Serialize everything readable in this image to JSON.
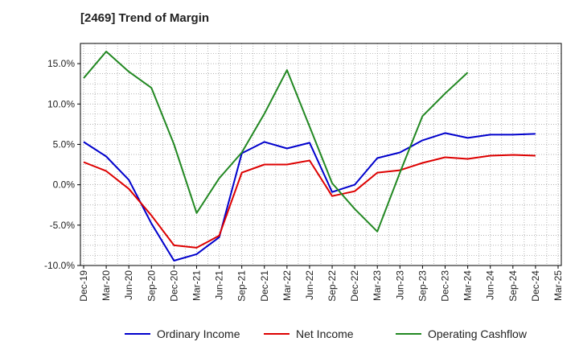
{
  "chart_data": {
    "type": "line",
    "title": "[2469]  Trend of Margin",
    "xlabel": "",
    "ylabel": "",
    "categories": [
      "Dec-19",
      "Mar-20",
      "Jun-20",
      "Sep-20",
      "Dec-20",
      "Mar-21",
      "Jun-21",
      "Sep-21",
      "Dec-21",
      "Mar-22",
      "Jun-22",
      "Sep-22",
      "Dec-22",
      "Mar-23",
      "Jun-23",
      "Sep-23",
      "Dec-23",
      "Mar-24",
      "Jun-24",
      "Sep-24",
      "Dec-24",
      "Mar-25"
    ],
    "ylim": [
      -10,
      17.5
    ],
    "yticks": [
      -10,
      -5,
      0,
      5,
      10,
      15
    ],
    "ytick_labels": [
      "-10.0%",
      "-5.0%",
      "0.0%",
      "5.0%",
      "10.0%",
      "15.0%"
    ],
    "grid": true,
    "legend_position": "bottom",
    "series": [
      {
        "name": "Ordinary Income",
        "color": "#0000cc",
        "values": [
          5.3,
          3.5,
          0.6,
          -4.8,
          -9.4,
          -8.6,
          -6.5,
          3.9,
          5.3,
          4.5,
          5.2,
          -0.9,
          0.0,
          3.3,
          4.0,
          5.5,
          6.4,
          5.8,
          6.2,
          6.2,
          6.3,
          null
        ]
      },
      {
        "name": "Net Income",
        "color": "#dd0000",
        "values": [
          2.8,
          1.7,
          -0.5,
          -3.8,
          -7.5,
          -7.8,
          -6.3,
          1.5,
          2.5,
          2.5,
          3.0,
          -1.4,
          -0.8,
          1.5,
          1.8,
          2.7,
          3.4,
          3.2,
          3.6,
          3.7,
          3.6,
          null
        ]
      },
      {
        "name": "Operating Cashflow",
        "color": "#228822",
        "values": [
          13.2,
          16.5,
          14.0,
          12.0,
          5.0,
          -3.5,
          0.8,
          4.0,
          8.8,
          14.2,
          7.2,
          0.2,
          -3.0,
          -5.8,
          1.5,
          8.5,
          11.3,
          13.9,
          null,
          null,
          null,
          null
        ]
      }
    ]
  }
}
